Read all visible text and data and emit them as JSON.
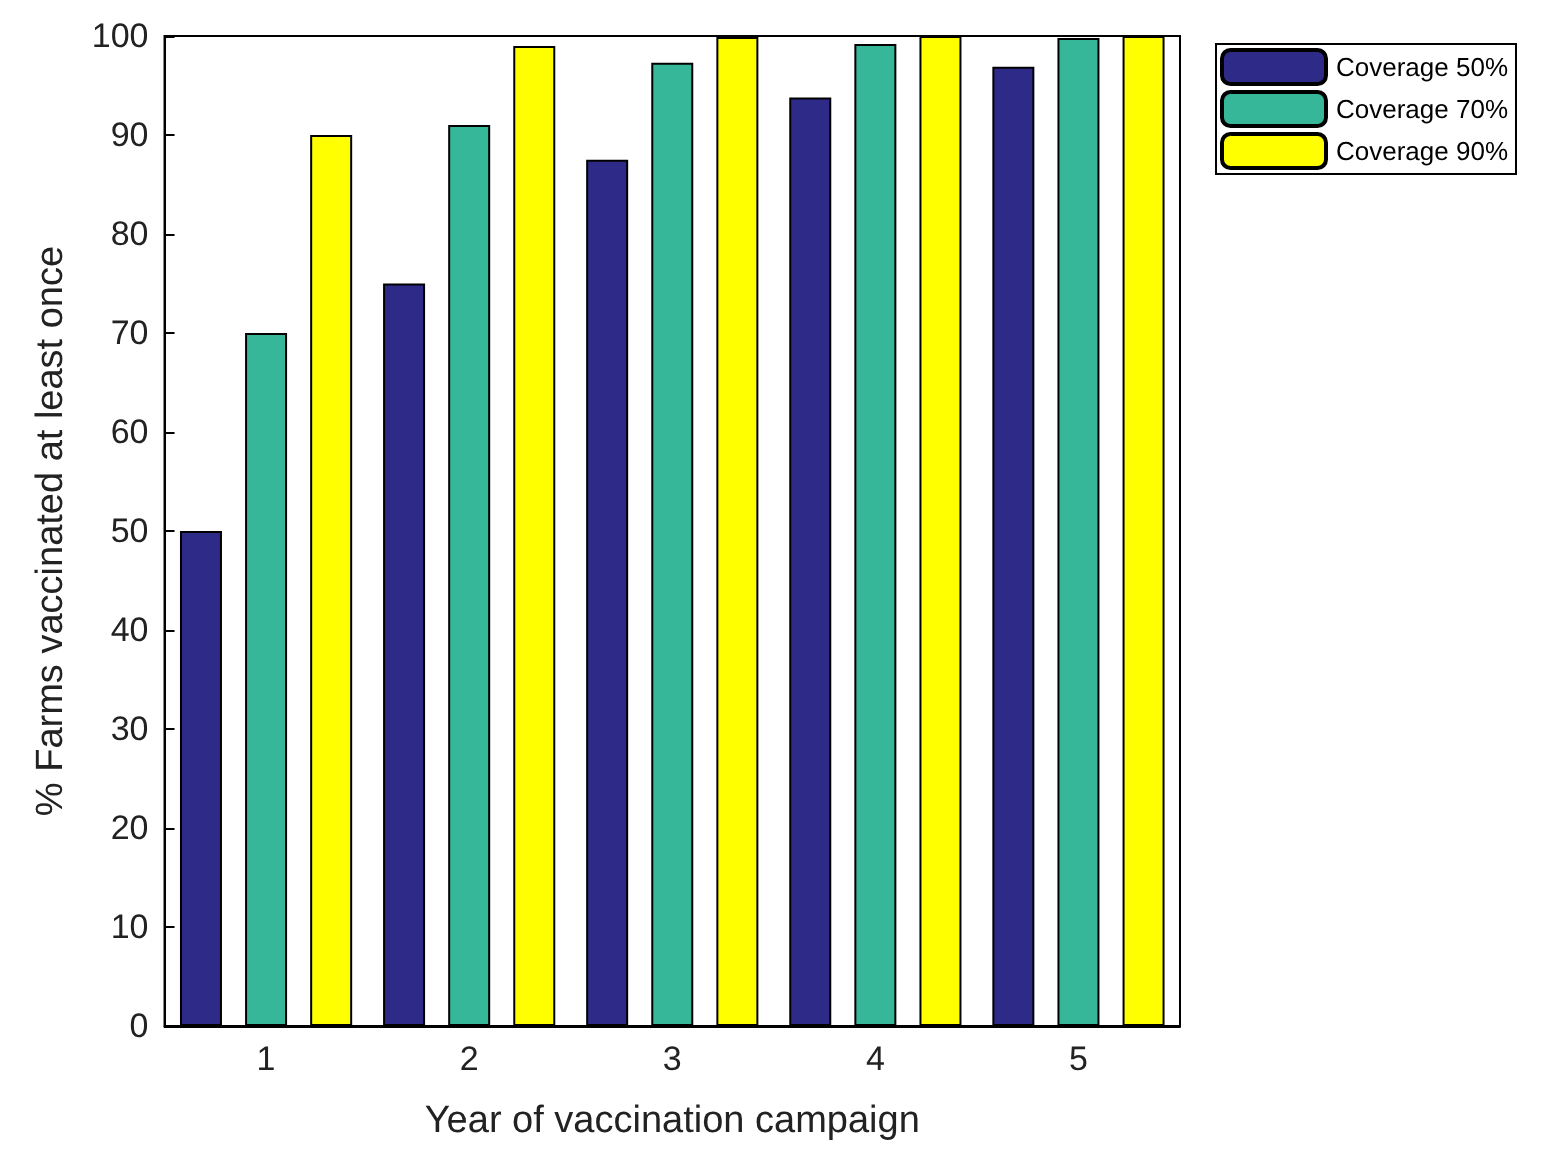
{
  "chart_data": {
    "type": "bar",
    "xlabel": "Year of vaccination campaign",
    "ylabel": "% Farms vaccinated at least once",
    "categories": [
      "1",
      "2",
      "3",
      "4",
      "5"
    ],
    "series": [
      {
        "name": "Coverage 50%",
        "color": "#2e2a87",
        "values": [
          50,
          75,
          87.5,
          93.8,
          96.9
        ]
      },
      {
        "name": "Coverage 70%",
        "color": "#36b79a",
        "values": [
          70,
          91,
          97.3,
          99.2,
          99.8
        ]
      },
      {
        "name": "Coverage 90%",
        "color": "#ffff00",
        "values": [
          90,
          99,
          99.9,
          100,
          100
        ]
      }
    ],
    "ylim": [
      0,
      100
    ],
    "yticks": [
      0,
      10,
      20,
      30,
      40,
      50,
      60,
      70,
      80,
      90,
      100
    ],
    "grid": false,
    "legend": "top right"
  }
}
